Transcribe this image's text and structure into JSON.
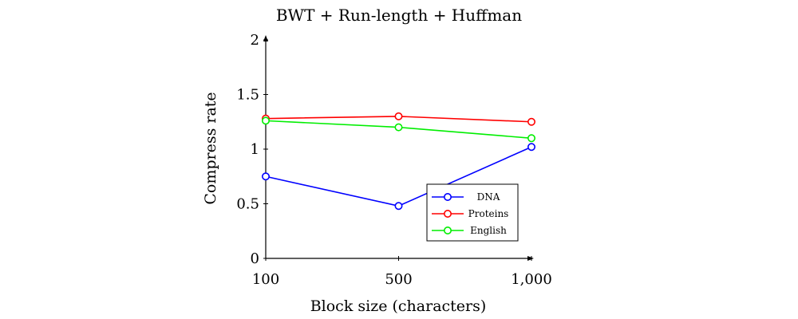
{
  "chart_data": {
    "type": "line",
    "title": "BWT + Run-length + Huffman",
    "xlabel": "Block size (characters)",
    "ylabel": "Compress rate",
    "x": [
      100,
      500,
      1000
    ],
    "x_tick_labels": [
      "100",
      "500",
      "1,000"
    ],
    "y_ticks": [
      0,
      0.5,
      1,
      1.5,
      2
    ],
    "y_tick_labels": [
      "0",
      "0.5",
      "1",
      "1.5",
      "2"
    ],
    "ylim": [
      0,
      2
    ],
    "grid": false,
    "legend_position": "inside-bottom-right",
    "series": [
      {
        "name": "DNA",
        "color": "#0000ff",
        "values": [
          0.75,
          0.48,
          1.02
        ]
      },
      {
        "name": "Proteins",
        "color": "#ff0000",
        "values": [
          1.28,
          1.3,
          1.25
        ]
      },
      {
        "name": "English",
        "color": "#00ee00",
        "values": [
          1.26,
          1.2,
          1.1
        ]
      }
    ]
  }
}
